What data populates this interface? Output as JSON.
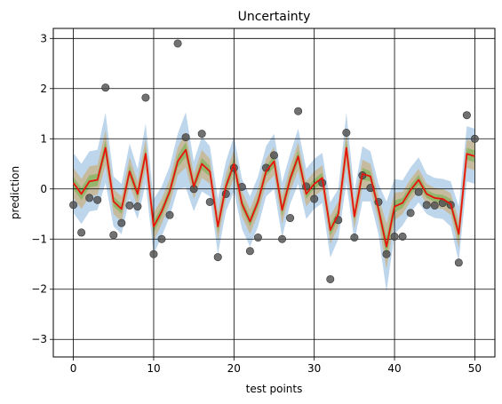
{
  "chart_data": {
    "type": "line",
    "title": "Uncertainty",
    "xlabel": "test points",
    "ylabel": "prediction",
    "xlim": [
      -2.5,
      52.5
    ],
    "ylim": [
      -3.35,
      3.2
    ],
    "xticks": [
      0,
      10,
      20,
      30,
      40,
      50
    ],
    "yticks": [
      -3,
      -2,
      -1,
      0,
      1,
      2,
      3
    ],
    "grid": true,
    "colors": {
      "mean": "#e8140c",
      "band_outer": "#a8c8e6",
      "band_mid": "#c8b48c",
      "band_inner": "#8cb464",
      "points": "#4d4d4d"
    },
    "x": [
      0,
      1,
      2,
      3,
      4,
      5,
      6,
      7,
      8,
      9,
      10,
      11,
      12,
      13,
      14,
      15,
      16,
      17,
      18,
      19,
      20,
      21,
      22,
      23,
      24,
      25,
      26,
      27,
      28,
      29,
      30,
      31,
      32,
      33,
      34,
      35,
      36,
      37,
      38,
      39,
      40,
      41,
      42,
      43,
      44,
      45,
      46,
      47,
      48,
      49,
      50
    ],
    "mean": [
      0.12,
      -0.1,
      0.15,
      0.18,
      0.82,
      -0.25,
      -0.4,
      0.35,
      -0.1,
      0.7,
      -0.75,
      -0.45,
      -0.05,
      0.55,
      0.78,
      0.05,
      0.5,
      0.35,
      -0.75,
      0.05,
      0.5,
      -0.3,
      -0.65,
      -0.25,
      0.35,
      0.55,
      -0.42,
      0.2,
      0.65,
      -0.1,
      0.1,
      0.22,
      -0.82,
      -0.5,
      0.82,
      -0.55,
      0.3,
      0.25,
      -0.4,
      -1.15,
      -0.35,
      -0.28,
      -0.02,
      0.18,
      -0.1,
      -0.18,
      -0.2,
      -0.3,
      -0.9,
      0.7,
      0.65
    ],
    "band_outer": [
      0.6,
      0.6,
      0.6,
      0.6,
      0.7,
      0.5,
      0.5,
      0.55,
      0.5,
      0.6,
      0.55,
      0.5,
      0.5,
      0.55,
      0.75,
      0.5,
      0.55,
      0.5,
      0.55,
      0.5,
      0.55,
      0.5,
      0.5,
      0.5,
      0.5,
      0.55,
      0.55,
      0.5,
      0.55,
      0.5,
      0.5,
      0.5,
      0.55,
      0.5,
      0.7,
      0.5,
      0.55,
      0.5,
      0.5,
      0.9,
      0.55,
      0.45,
      0.45,
      0.45,
      0.4,
      0.4,
      0.4,
      0.45,
      0.55,
      0.55,
      0.55
    ],
    "band_mid": [
      0.3,
      0.3,
      0.3,
      0.3,
      0.35,
      0.25,
      0.25,
      0.28,
      0.25,
      0.3,
      0.28,
      0.25,
      0.25,
      0.28,
      0.35,
      0.25,
      0.28,
      0.25,
      0.28,
      0.25,
      0.28,
      0.25,
      0.25,
      0.25,
      0.25,
      0.28,
      0.28,
      0.25,
      0.28,
      0.25,
      0.25,
      0.25,
      0.28,
      0.25,
      0.35,
      0.25,
      0.28,
      0.25,
      0.25,
      0.45,
      0.28,
      0.22,
      0.22,
      0.22,
      0.2,
      0.2,
      0.2,
      0.22,
      0.28,
      0.28,
      0.28
    ],
    "band_inner": [
      0.12,
      0.12,
      0.12,
      0.12,
      0.15,
      0.1,
      0.1,
      0.12,
      0.1,
      0.12,
      0.12,
      0.1,
      0.1,
      0.12,
      0.15,
      0.1,
      0.12,
      0.1,
      0.12,
      0.1,
      0.12,
      0.1,
      0.1,
      0.1,
      0.1,
      0.12,
      0.12,
      0.1,
      0.12,
      0.1,
      0.1,
      0.1,
      0.12,
      0.1,
      0.15,
      0.1,
      0.12,
      0.1,
      0.1,
      0.2,
      0.12,
      0.1,
      0.1,
      0.1,
      0.08,
      0.08,
      0.08,
      0.1,
      0.12,
      0.12,
      0.12
    ],
    "points": [
      -0.32,
      -0.87,
      -0.18,
      -0.22,
      2.02,
      -0.92,
      -0.68,
      -0.33,
      -0.35,
      1.82,
      -1.3,
      -1.0,
      -0.52,
      2.9,
      1.03,
      0.0,
      1.1,
      -0.26,
      -1.36,
      -0.1,
      0.42,
      0.04,
      -1.24,
      -0.97,
      0.42,
      0.67,
      -1.0,
      -0.58,
      1.55,
      0.05,
      -0.2,
      0.12,
      -1.8,
      -0.62,
      1.12,
      -0.97,
      0.27,
      0.02,
      -0.26,
      -1.3,
      -0.95,
      -0.95,
      -0.48,
      -0.06,
      -0.32,
      -0.33,
      -0.28,
      -0.32,
      -1.47,
      1.47,
      1.0
    ]
  }
}
